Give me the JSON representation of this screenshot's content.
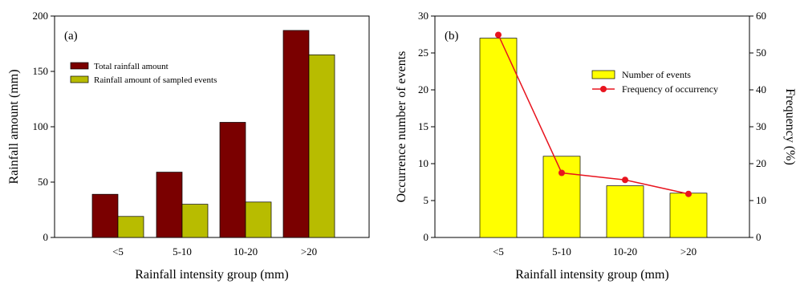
{
  "chart_data": [
    {
      "type": "bar",
      "panel_label": "(a)",
      "xlabel": "Rainfall intensity group (mm)",
      "ylabel": "Rainfall amount (mm)",
      "categories": [
        "<5",
        "5-10",
        "10-20",
        ">20"
      ],
      "ylim": [
        0,
        200
      ],
      "yticks": [
        0,
        50,
        100,
        150,
        200
      ],
      "grid": false,
      "legend_position": "upper-left",
      "series": [
        {
          "name": "Total rainfall amount",
          "color": "#7a0000",
          "values": [
            39,
            59,
            104,
            187
          ]
        },
        {
          "name": "Rainfall amount of sampled events",
          "color": "#b8bc00",
          "values": [
            19,
            30,
            32,
            165
          ]
        }
      ]
    },
    {
      "type": "bar",
      "panel_label": "(b)",
      "xlabel": "Rainfall intensity group (mm)",
      "ylabel": "Occurrence number of events",
      "y2label": "Frequency (%)",
      "categories": [
        "<5",
        "5-10",
        "10-20",
        ">20"
      ],
      "ylim": [
        0,
        30
      ],
      "yticks": [
        0,
        5,
        10,
        15,
        20,
        25,
        30
      ],
      "y2lim": [
        0,
        60
      ],
      "y2ticks": [
        0,
        10,
        20,
        30,
        40,
        50,
        60
      ],
      "grid": false,
      "legend_position": "upper-right",
      "series": [
        {
          "name": "Number of events",
          "kind": "bar",
          "axis": "left",
          "color": "#ffff00",
          "values": [
            27,
            11,
            7,
            6
          ]
        },
        {
          "name": "Frequency of occurrency",
          "kind": "line",
          "axis": "right",
          "color": "#e8141e",
          "values": [
            54.9,
            17.5,
            15.6,
            11.8
          ]
        }
      ]
    }
  ]
}
